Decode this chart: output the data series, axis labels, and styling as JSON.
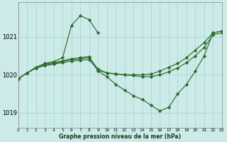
{
  "background_color": "#cceae8",
  "grid_color": "#aad4d0",
  "line_color": "#2d6e2d",
  "title": "Graphe pression niveau de la mer (hPa)",
  "xlim": [
    0,
    23
  ],
  "ylim": [
    1018.6,
    1021.9
  ],
  "yticks": [
    1019,
    1020,
    1021
  ],
  "xticks": [
    0,
    1,
    2,
    3,
    4,
    5,
    6,
    7,
    8,
    9,
    10,
    11,
    12,
    13,
    14,
    15,
    16,
    17,
    18,
    19,
    20,
    21,
    22,
    23
  ],
  "series": [
    {
      "x": [
        0,
        1,
        2,
        3,
        4,
        5,
        6,
        7,
        8,
        9
      ],
      "y": [
        1019.9,
        1020.05,
        1020.2,
        1020.3,
        1020.35,
        1020.45,
        1021.3,
        1021.55,
        1021.45,
        1021.1
      ]
    },
    {
      "x": [
        0,
        1,
        2,
        3,
        4,
        5,
        6,
        7,
        8,
        9,
        10,
        11,
        12,
        13,
        14,
        15,
        16,
        17,
        18,
        19,
        20,
        21,
        22,
        23
      ],
      "y": [
        1019.9,
        1020.05,
        1020.2,
        1020.28,
        1020.32,
        1020.37,
        1020.42,
        1020.45,
        1020.48,
        1020.1,
        1019.95,
        1019.75,
        1019.6,
        1019.45,
        1019.35,
        1019.2,
        1019.05,
        1019.15,
        1019.5,
        1019.75,
        1020.1,
        1020.5,
        1021.1,
        1021.15
      ]
    },
    {
      "x": [
        0,
        1,
        2,
        3,
        4,
        5,
        6,
        7,
        8,
        9,
        10,
        11,
        12,
        13,
        14,
        15,
        16,
        17,
        18,
        19,
        20,
        21,
        22,
        23
      ],
      "y": [
        1019.9,
        1020.05,
        1020.18,
        1020.25,
        1020.3,
        1020.35,
        1020.4,
        1020.42,
        1020.45,
        1020.15,
        1020.05,
        1020.02,
        1020.0,
        1020.0,
        1020.0,
        1020.02,
        1020.1,
        1020.2,
        1020.3,
        1020.45,
        1020.65,
        1020.85,
        1021.1,
        1021.15
      ]
    },
    {
      "x": [
        0,
        1,
        2,
        3,
        4,
        5,
        6,
        7,
        8,
        9,
        10,
        11,
        12,
        13,
        14,
        15,
        16,
        17,
        18,
        19,
        20,
        21,
        22,
        23
      ],
      "y": [
        1019.9,
        1020.05,
        1020.18,
        1020.24,
        1020.28,
        1020.32,
        1020.36,
        1020.38,
        1020.4,
        1020.12,
        1020.05,
        1020.03,
        1020.0,
        1019.98,
        1019.95,
        1019.95,
        1020.0,
        1020.08,
        1020.18,
        1020.32,
        1020.5,
        1020.72,
        1021.05,
        1021.1
      ]
    }
  ]
}
